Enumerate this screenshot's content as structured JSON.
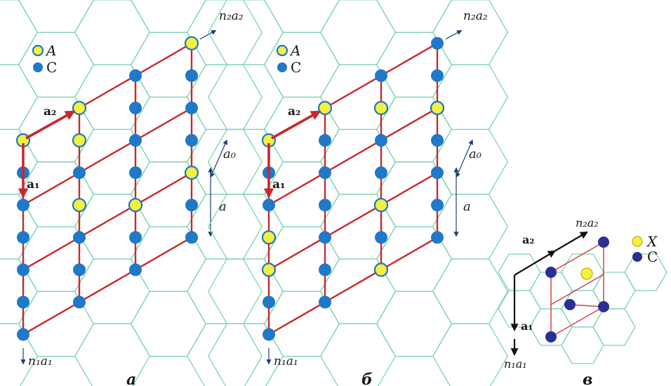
{
  "panels": [
    {
      "id": "a",
      "caption": "а",
      "legend": [
        {
          "symbol": "A",
          "kind": "A"
        },
        {
          "symbol": "C",
          "kind": "C"
        }
      ],
      "vector_labels": {
        "a1": "a₁",
        "a2": "a₂",
        "n1a1": "n₁a₁",
        "n2a2": "n₂a₂"
      },
      "dimension_labels": {
        "a0": "a₀",
        "a": "a"
      }
    },
    {
      "id": "b",
      "caption": "б",
      "legend": [
        {
          "symbol": "A",
          "kind": "A"
        },
        {
          "symbol": "C",
          "kind": "C"
        }
      ],
      "vector_labels": {
        "a1": "a₁",
        "a2": "a₂",
        "n1a1": "n₁a₁",
        "n2a2": "n₂a₂"
      },
      "dimension_labels": {
        "a0": "a₀",
        "a": "a"
      }
    },
    {
      "id": "v",
      "caption": "в",
      "legend": [
        {
          "symbol": "X",
          "kind": "X"
        },
        {
          "symbol": "C",
          "kind": "C"
        }
      ],
      "vector_labels": {
        "a1": "a₁",
        "a2": "a₂",
        "n1a1": "n₁a₁",
        "n2a2": "n₂a₂"
      }
    }
  ],
  "colors": {
    "hexagon": "#7fd3b0",
    "bond": "#c8282c",
    "atom_C": "#1f78c8",
    "atom_C_dark": "#2a2f93",
    "atom_A_fill": "#f4f03c",
    "atom_A_ring": "#1f78c8",
    "vector_dark": "#111111"
  },
  "icons": {
    "vector_arrow": "arrow-icon"
  }
}
